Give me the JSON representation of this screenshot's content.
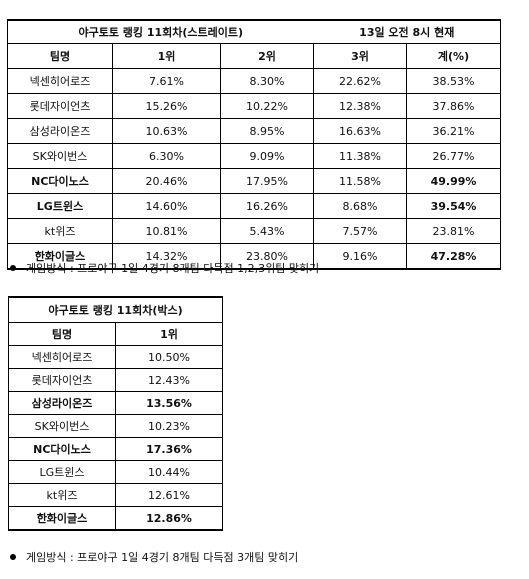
{
  "straight": {
    "title": "야구토토 랭킹 11회차(스트레이트)",
    "timestamp": "13일 오전 8시 현재",
    "headers": [
      "팀명",
      "1위",
      "2위",
      "3위",
      "계(%)"
    ],
    "rows": [
      {
        "team": "넥센히어로즈",
        "p1": "7.61%",
        "p2": "8.30%",
        "p3": "22.62%",
        "total": "38.53%",
        "bold": false
      },
      {
        "team": "롯데자이언츠",
        "p1": "15.26%",
        "p2": "10.22%",
        "p3": "12.38%",
        "total": "37.86%",
        "bold": false
      },
      {
        "team": "삼성라이온즈",
        "p1": "10.63%",
        "p2": "8.95%",
        "p3": "16.63%",
        "total": "36.21%",
        "bold": false
      },
      {
        "team": "SK와이번스",
        "p1": "6.30%",
        "p2": "9.09%",
        "p3": "11.38%",
        "total": "26.77%",
        "bold": false
      },
      {
        "team": "NC다이노스",
        "p1": "20.46%",
        "p2": "17.95%",
        "p3": "11.58%",
        "total": "49.99%",
        "bold": true
      },
      {
        "team": "LG트윈스",
        "p1": "14.60%",
        "p2": "16.26%",
        "p3": "8.68%",
        "total": "39.54%",
        "bold": true
      },
      {
        "team": "kt위즈",
        "p1": "10.81%",
        "p2": "5.43%",
        "p3": "7.57%",
        "total": "23.81%",
        "bold": false
      },
      {
        "team": "한화이글스",
        "p1": "14.32%",
        "p2": "23.80%",
        "p3": "9.16%",
        "total": "47.28%",
        "bold": true
      }
    ],
    "note": "게임방식 : 프로야구 1일 4경기 8개팀 다득점 1,2,3위팀 맞히기"
  },
  "box": {
    "title": "야구토토 랭킹 11회차(박스)",
    "headers": [
      "팀명",
      "1위"
    ],
    "rows": [
      {
        "team": "넥센히어로즈",
        "p1": "10.50%",
        "bold": false
      },
      {
        "team": "롯데자이언츠",
        "p1": "12.43%",
        "bold": false
      },
      {
        "team": "삼성라이온즈",
        "p1": "13.56%",
        "bold": true
      },
      {
        "team": "SK와이번스",
        "p1": "10.23%",
        "bold": false
      },
      {
        "team": "NC다이노스",
        "p1": "17.36%",
        "bold": true
      },
      {
        "team": "LG트윈스",
        "p1": "10.44%",
        "bold": false
      },
      {
        "team": "kt위즈",
        "p1": "12.61%",
        "bold": false
      },
      {
        "team": "한화이글스",
        "p1": "12.86%",
        "bold": true
      }
    ],
    "note": "게임방식 : 프로야구 1일 4경기 8개팀 다득점 3개팀 맞히기"
  }
}
